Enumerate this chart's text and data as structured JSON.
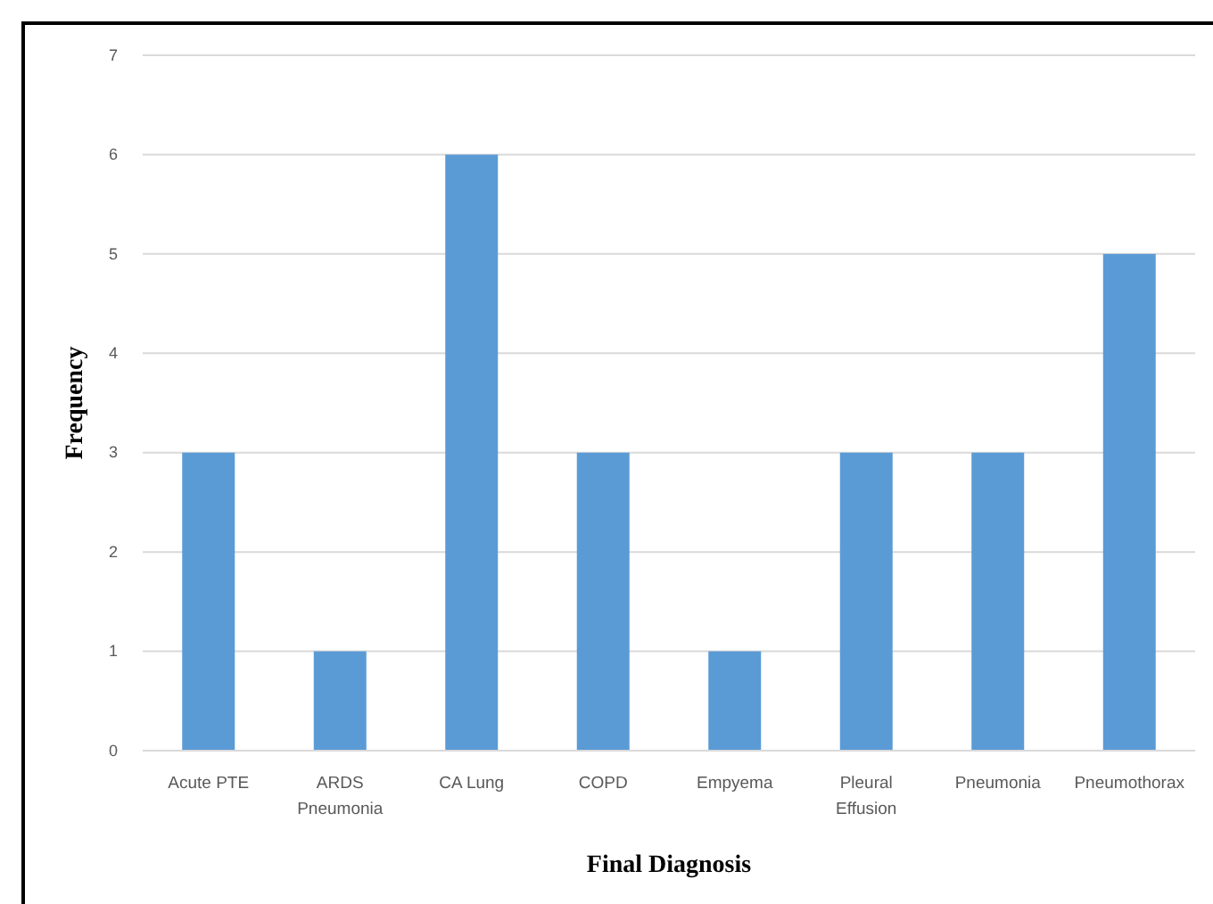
{
  "chart_data": {
    "type": "bar",
    "xlabel": "Final Diagnosis",
    "ylabel": "Frequency",
    "categories": [
      "Acute PTE",
      "ARDS Pneumonia",
      "CA Lung",
      "COPD",
      "Empyema",
      "Pleural Effusion",
      "Pneumonia",
      "Pneumothorax"
    ],
    "values": [
      3,
      1,
      6,
      3,
      1,
      3,
      3,
      5
    ],
    "color": "#5b9bd5",
    "ylim": [
      0,
      7
    ],
    "yticks": [
      0,
      1,
      2,
      3,
      4,
      5,
      6,
      7
    ],
    "grid": "y"
  }
}
